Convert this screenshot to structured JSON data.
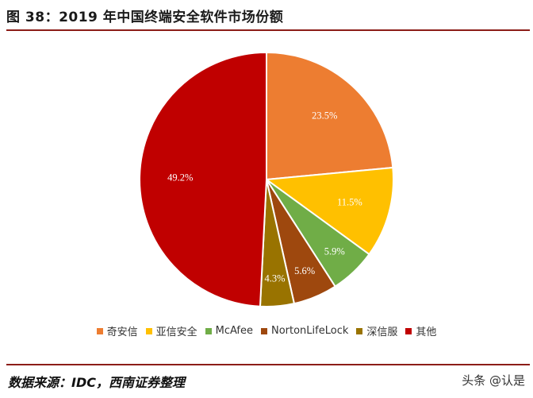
{
  "title": "图 38：2019 年中国终端安全软件市场份额",
  "source": "数据来源：IDC，西南证券整理",
  "watermark": "头条 @认是",
  "chart_data": {
    "type": "pie",
    "title": "图 38：2019 年中国终端安全软件市场份额",
    "legend_position": "bottom",
    "slices": [
      {
        "name": "奇安信",
        "value": 23.5,
        "label": "23.5%",
        "color": "#ed7d31"
      },
      {
        "name": "亚信安全",
        "value": 11.5,
        "label": "11.5%",
        "color": "#ffc000"
      },
      {
        "name": "McAfee",
        "value": 5.9,
        "label": "5.9%",
        "color": "#70ad47"
      },
      {
        "name": "NortonLifeLock",
        "value": 5.6,
        "label": "5.6%",
        "color": "#9e480e"
      },
      {
        "name": "深信服",
        "value": 4.3,
        "label": "4.3%",
        "color": "#997300"
      },
      {
        "name": "其他",
        "value": 49.2,
        "label": "49.2%",
        "color": "#c00000"
      }
    ]
  }
}
